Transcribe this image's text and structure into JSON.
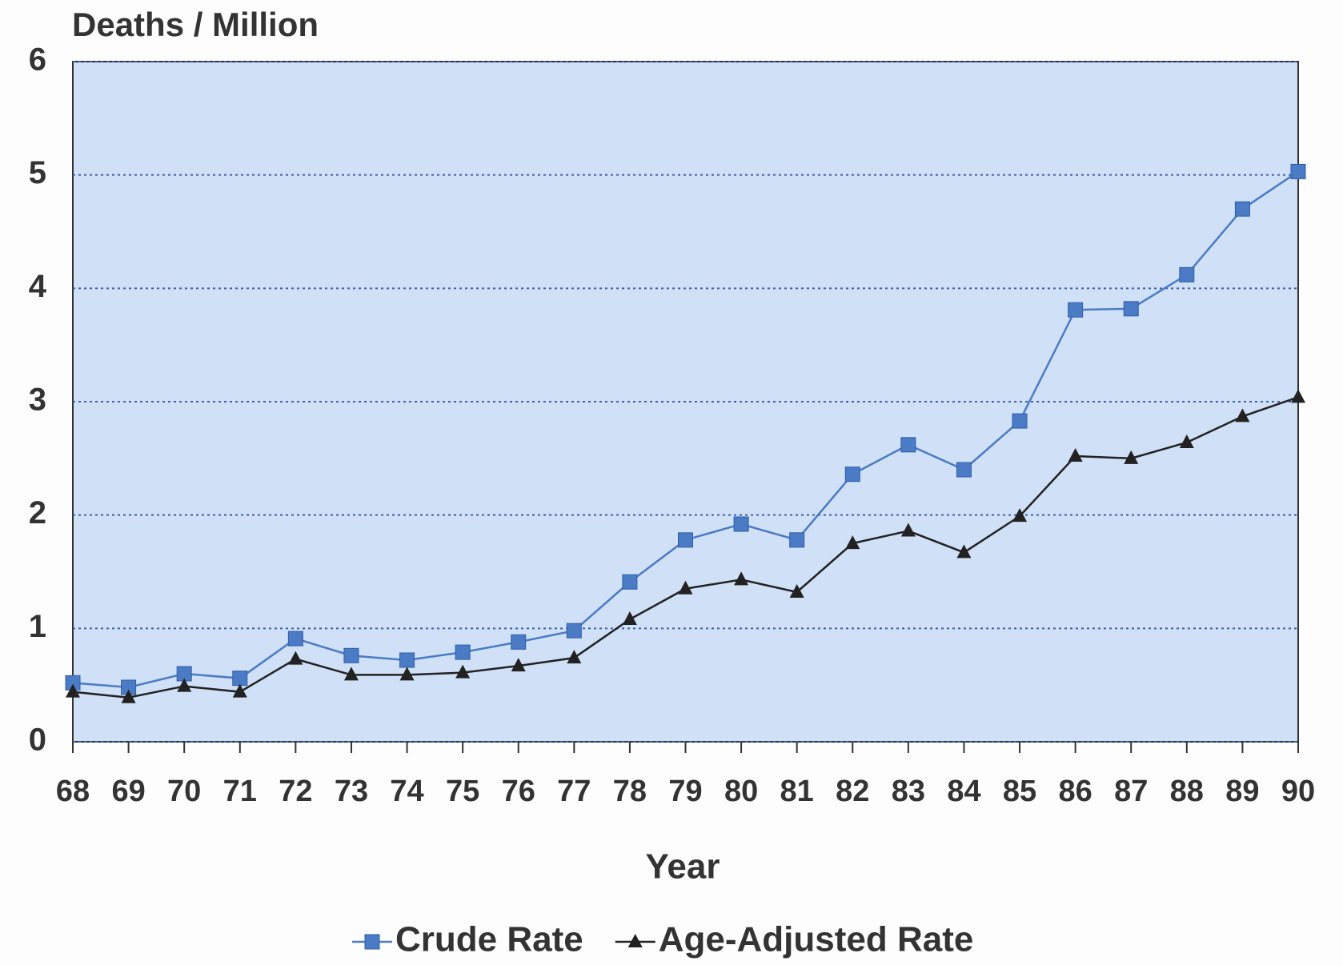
{
  "chart_data": {
    "type": "line",
    "ylabel": "Deaths / Million",
    "xlabel": "Year",
    "categories": [
      "68",
      "69",
      "70",
      "71",
      "72",
      "73",
      "74",
      "75",
      "76",
      "77",
      "78",
      "79",
      "80",
      "81",
      "82",
      "83",
      "84",
      "85",
      "86",
      "87",
      "88",
      "89",
      "90"
    ],
    "series": [
      {
        "name": "Crude Rate",
        "color": "#4b7bc4",
        "marker": "square",
        "values": [
          0.52,
          0.48,
          0.6,
          0.56,
          0.91,
          0.76,
          0.72,
          0.79,
          0.88,
          0.98,
          1.41,
          1.78,
          1.92,
          1.78,
          2.36,
          2.62,
          2.4,
          2.83,
          3.81,
          3.82,
          4.12,
          4.7,
          5.03
        ]
      },
      {
        "name": "Age-Adjusted Rate",
        "color": "#222222",
        "marker": "triangle",
        "values": [
          0.44,
          0.39,
          0.49,
          0.44,
          0.73,
          0.59,
          0.59,
          0.61,
          0.67,
          0.74,
          1.08,
          1.35,
          1.43,
          1.32,
          1.75,
          1.86,
          1.67,
          1.99,
          2.52,
          2.5,
          2.64,
          2.87,
          3.04
        ]
      }
    ],
    "ylim": [
      0,
      6
    ],
    "yticks": [
      0,
      1,
      2,
      3,
      4,
      5,
      6
    ],
    "grid": true
  }
}
